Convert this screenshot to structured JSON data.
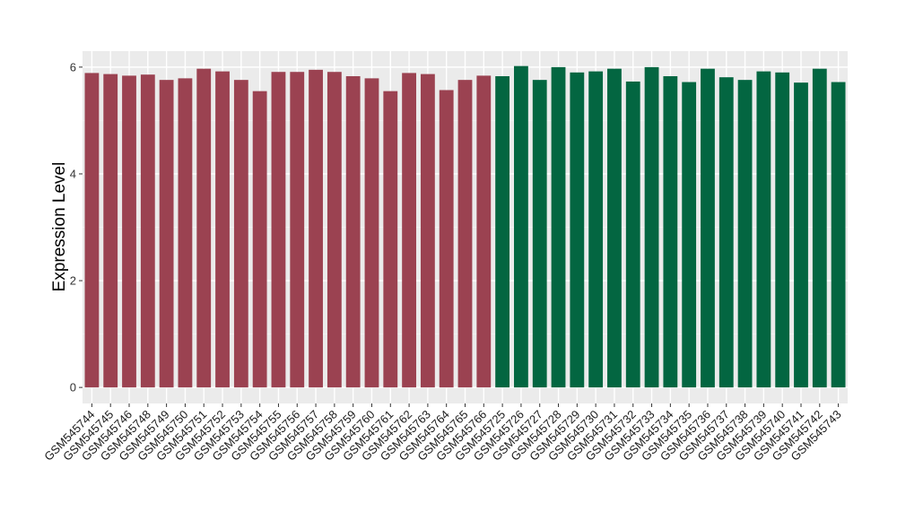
{
  "chart_data": {
    "type": "bar",
    "title": "",
    "xlabel": "",
    "ylabel": "Expression Level",
    "ylim": [
      -0.3,
      6.3
    ],
    "yticks": [
      0,
      2,
      4,
      6
    ],
    "grid": true,
    "background": "#ebebeb",
    "categories": [
      "GSM545744",
      "GSM545745",
      "GSM545746",
      "GSM545748",
      "GSM545749",
      "GSM545750",
      "GSM545751",
      "GSM545752",
      "GSM545753",
      "GSM545754",
      "GSM545755",
      "GSM545756",
      "GSM545757",
      "GSM545758",
      "GSM545759",
      "GSM545760",
      "GSM545761",
      "GSM545762",
      "GSM545763",
      "GSM545764",
      "GSM545765",
      "GSM545766",
      "GSM545725",
      "GSM545726",
      "GSM545727",
      "GSM545728",
      "GSM545729",
      "GSM545730",
      "GSM545731",
      "GSM545732",
      "GSM545733",
      "GSM545734",
      "GSM545735",
      "GSM545736",
      "GSM545737",
      "GSM545738",
      "GSM545739",
      "GSM545740",
      "GSM545741",
      "GSM545742",
      "GSM545743"
    ],
    "values": [
      5.89,
      5.87,
      5.84,
      5.86,
      5.76,
      5.79,
      5.97,
      5.92,
      5.76,
      5.55,
      5.91,
      5.91,
      5.95,
      5.91,
      5.83,
      5.79,
      5.55,
      5.89,
      5.87,
      5.57,
      5.76,
      5.84,
      5.83,
      6.02,
      5.76,
      6.0,
      5.9,
      5.92,
      5.97,
      5.73,
      6.0,
      5.83,
      5.72,
      5.97,
      5.81,
      5.76,
      5.92,
      5.9,
      5.71,
      5.97,
      5.72
    ],
    "groups": [
      {
        "count": 22,
        "color": "#9b4251"
      },
      {
        "count": 19,
        "color": "#036641"
      }
    ]
  }
}
